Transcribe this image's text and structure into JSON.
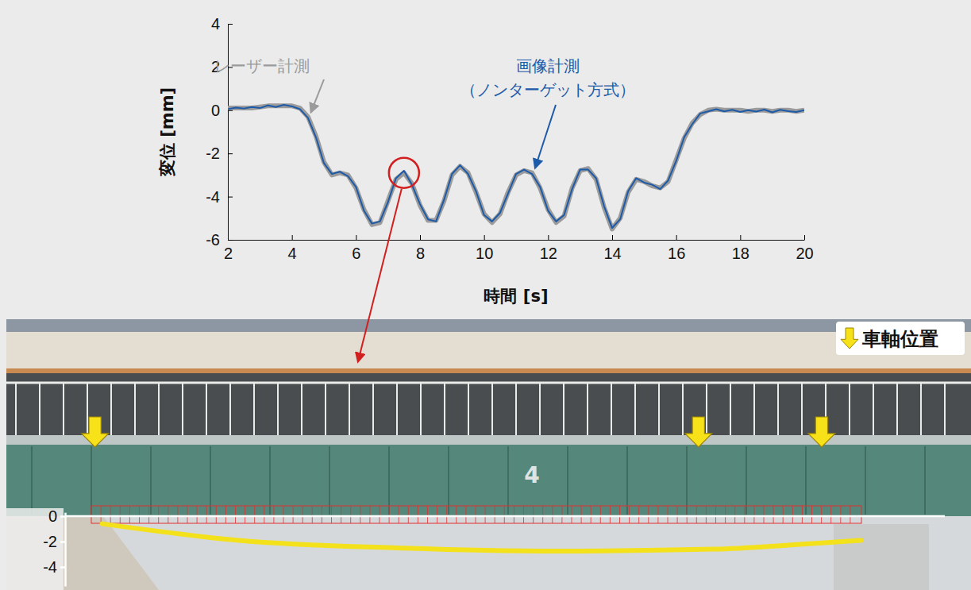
{
  "chart_data": [
    {
      "type": "line",
      "xlabel": "時間 [s]",
      "ylabel": "変位 [mm]",
      "x": [
        2,
        2.25,
        2.5,
        2.75,
        3,
        3.25,
        3.5,
        3.75,
        4,
        4.25,
        4.5,
        4.75,
        5,
        5.25,
        5.5,
        5.75,
        6,
        6.25,
        6.5,
        6.75,
        7,
        7.25,
        7.5,
        7.75,
        8,
        8.25,
        8.5,
        8.75,
        9,
        9.25,
        9.5,
        9.75,
        10,
        10.25,
        10.5,
        10.75,
        11,
        11.25,
        11.5,
        11.75,
        12,
        12.25,
        12.5,
        12.75,
        13,
        13.25,
        13.5,
        13.75,
        14,
        14.25,
        14.5,
        14.75,
        15,
        15.25,
        15.5,
        15.75,
        16,
        16.25,
        16.5,
        16.75,
        17,
        17.25,
        17.5,
        17.75,
        18,
        18.25,
        18.5,
        18.75,
        19,
        19.25,
        19.5,
        19.75,
        20
      ],
      "xlim": [
        2,
        20
      ],
      "xticks": [
        2,
        4,
        6,
        8,
        10,
        12,
        14,
        16,
        18,
        20
      ],
      "ylim": [
        -6,
        4
      ],
      "yticks": [
        -6,
        -4,
        -2,
        0,
        2,
        4
      ],
      "series": [
        {
          "name": "レーザー計測",
          "color": "#9b9b9b",
          "values": [
            0.1,
            0.1,
            0.1,
            0.1,
            0.15,
            0.2,
            0.2,
            0.2,
            0.2,
            0.1,
            -0.3,
            -1.2,
            -2.4,
            -3.0,
            -2.9,
            -3.0,
            -3.6,
            -4.6,
            -5.3,
            -5.2,
            -4.2,
            -3.2,
            -2.9,
            -3.4,
            -4.4,
            -5.1,
            -5.1,
            -4.2,
            -3.0,
            -2.6,
            -2.9,
            -3.8,
            -4.8,
            -5.2,
            -4.8,
            -3.8,
            -3.0,
            -2.8,
            -2.9,
            -3.6,
            -4.6,
            -5.2,
            -4.9,
            -3.6,
            -2.8,
            -2.7,
            -3.2,
            -4.5,
            -5.5,
            -5.0,
            -3.8,
            -3.2,
            -3.3,
            -3.5,
            -3.6,
            -3.3,
            -2.3,
            -1.3,
            -0.6,
            -0.2,
            0.0,
            0.05,
            0.0,
            0.0,
            0.0,
            -0.05,
            0.0,
            0.0,
            -0.05,
            0.0,
            0.0,
            -0.05,
            0.0
          ]
        },
        {
          "name": "画像計測（ノンターゲット方式）",
          "color": "#1d5aa8",
          "values": [
            0.05,
            0.12,
            0.08,
            0.15,
            0.1,
            0.22,
            0.15,
            0.25,
            0.18,
            0.05,
            -0.35,
            -1.25,
            -2.45,
            -2.95,
            -2.85,
            -3.05,
            -3.55,
            -4.65,
            -5.25,
            -5.15,
            -4.25,
            -3.15,
            -2.8,
            -3.45,
            -4.35,
            -5.05,
            -5.15,
            -4.15,
            -2.95,
            -2.55,
            -2.95,
            -3.75,
            -4.85,
            -5.15,
            -4.75,
            -3.85,
            -2.95,
            -2.75,
            -2.95,
            -3.55,
            -4.65,
            -5.15,
            -4.85,
            -3.65,
            -2.75,
            -2.75,
            -3.15,
            -4.45,
            -5.45,
            -5.05,
            -3.75,
            -3.15,
            -3.35,
            -3.45,
            -3.65,
            -3.25,
            -2.35,
            -1.25,
            -0.65,
            -0.15,
            -0.05,
            0.05,
            -0.05,
            0.02,
            -0.08,
            0.0,
            -0.06,
            0.03,
            -0.1,
            0.02,
            -0.04,
            -0.08,
            0.0
          ]
        }
      ],
      "highlight": {
        "x": 7.5,
        "y": -2.9
      }
    },
    {
      "type": "line",
      "x": [
        4.2,
        19.7,
        37.7,
        55.8,
        73.8,
        82.9,
        90.5
      ],
      "xlim": [
        0,
        100
      ],
      "ylim": [
        -5.5,
        0.3
      ],
      "yticks": [
        0,
        -2,
        -4
      ],
      "tick_labels": "y",
      "series": [
        {
          "color": "#f3e11c",
          "values": [
            -0.6,
            -1.9,
            -2.5,
            -2.75,
            -2.6,
            -2.25,
            -1.9
          ]
        }
      ],
      "axle_positions": [
        3.4,
        72,
        86
      ],
      "legend_label": "車軸位置",
      "girder_number": "4"
    }
  ]
}
